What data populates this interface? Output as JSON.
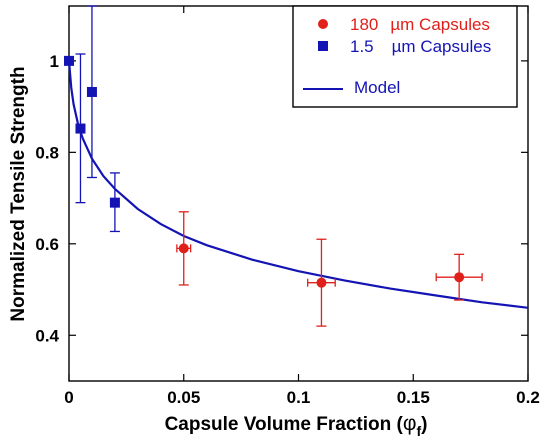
{
  "chart_data": {
    "type": "scatter",
    "xlabel": "Capsule Volume Fraction (φf)",
    "xlabel_main": "Capsule Volume Fraction (",
    "xlabel_symbol": "φ",
    "xlabel_subscript": "f",
    "xlabel_close": ")",
    "ylabel": "Normalized Tensile Strength",
    "xlim": [
      0,
      0.2
    ],
    "ylim": [
      0.3,
      1.12
    ],
    "x_ticks": [
      {
        "value": 0,
        "label": "0"
      },
      {
        "value": 0.05,
        "label": "0.05"
      },
      {
        "value": 0.1,
        "label": "0.1"
      },
      {
        "value": 0.15,
        "label": "0.15"
      },
      {
        "value": 0.2,
        "label": "0.2"
      }
    ],
    "y_ticks": [
      {
        "value": 0.4,
        "label": "0.4"
      },
      {
        "value": 0.6,
        "label": "0.6"
      },
      {
        "value": 0.8,
        "label": "0.8"
      },
      {
        "value": 1,
        "label": "1"
      }
    ],
    "grid": false,
    "legend_position": "top-right",
    "series": [
      {
        "name_value": "180",
        "name_unit": "µm Capsules",
        "marker": "circle",
        "color": "#e0201b",
        "points": [
          {
            "x": 0.05,
            "y": 0.59,
            "y_low": 0.51,
            "y_high": 0.67,
            "x_err": 0.003
          },
          {
            "x": 0.11,
            "y": 0.515,
            "y_low": 0.42,
            "y_high": 0.61,
            "x_err": 0.006
          },
          {
            "x": 0.17,
            "y": 0.527,
            "y_low": 0.477,
            "y_high": 0.577,
            "x_err": 0.01
          }
        ]
      },
      {
        "name_value": "1.5",
        "name_unit": "µm Capsules",
        "marker": "square",
        "color": "#1414b4",
        "points": [
          {
            "x": 0,
            "y": 1.0,
            "y_low": 1.0,
            "y_high": 1.0
          },
          {
            "x": 0.005,
            "y": 0.852,
            "y_low": 0.69,
            "y_high": 1.015
          },
          {
            "x": 0.01,
            "y": 0.932,
            "y_low": 0.745,
            "y_high": 1.12
          },
          {
            "x": 0.02,
            "y": 0.69,
            "y_low": 0.627,
            "y_high": 0.755
          }
        ]
      }
    ],
    "model": {
      "name": "Model",
      "color": "#1414b4",
      "curve": [
        {
          "x": 0,
          "y": 1.0
        },
        {
          "x": 0.001,
          "y": 0.94
        },
        {
          "x": 0.002,
          "y": 0.905
        },
        {
          "x": 0.004,
          "y": 0.86
        },
        {
          "x": 0.006,
          "y": 0.83
        },
        {
          "x": 0.01,
          "y": 0.786
        },
        {
          "x": 0.015,
          "y": 0.748
        },
        {
          "x": 0.02,
          "y": 0.72
        },
        {
          "x": 0.03,
          "y": 0.676
        },
        {
          "x": 0.04,
          "y": 0.643
        },
        {
          "x": 0.05,
          "y": 0.617
        },
        {
          "x": 0.06,
          "y": 0.597
        },
        {
          "x": 0.08,
          "y": 0.565
        },
        {
          "x": 0.1,
          "y": 0.54
        },
        {
          "x": 0.12,
          "y": 0.52
        },
        {
          "x": 0.14,
          "y": 0.502
        },
        {
          "x": 0.16,
          "y": 0.487
        },
        {
          "x": 0.18,
          "y": 0.472
        },
        {
          "x": 0.2,
          "y": 0.46
        }
      ]
    }
  }
}
